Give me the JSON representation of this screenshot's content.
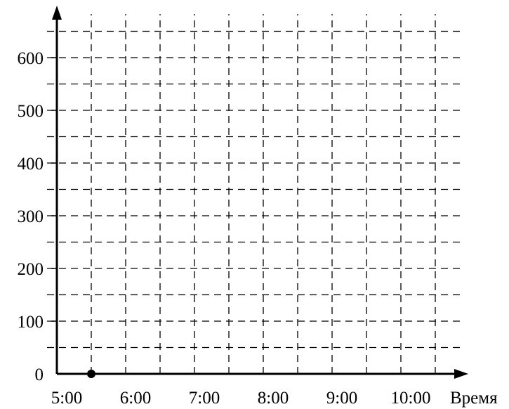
{
  "chart_data": {
    "type": "scatter",
    "title": "",
    "xlabel": "Время",
    "ylabel": "",
    "x_ticks": [
      "5:00",
      "6:00",
      "7:00",
      "8:00",
      "9:00",
      "10:00"
    ],
    "x_unit": "hours",
    "xlim": [
      5,
      10.9
    ],
    "x_grid_step": 0.5,
    "y_ticks": [
      0,
      100,
      200,
      300,
      400,
      500,
      600
    ],
    "ylim": [
      0,
      650
    ],
    "y_grid_step": 50,
    "grid": "dashed",
    "points": [
      {
        "x": 5.5,
        "y": 0
      }
    ],
    "colors": {
      "axis": "#000000",
      "grid": "#000000",
      "point": "#000000"
    }
  }
}
